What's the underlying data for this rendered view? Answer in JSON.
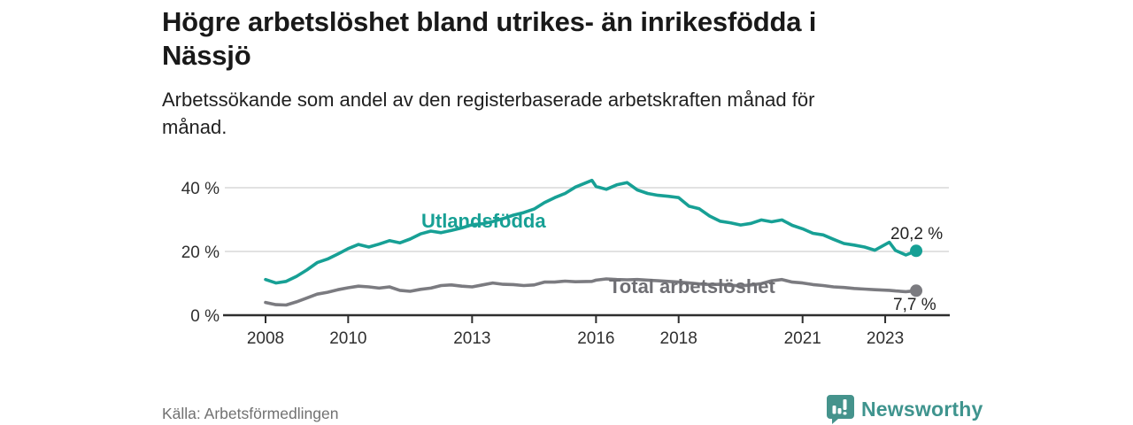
{
  "header": {
    "title_lines": [
      "Högre arbetslöshet bland utrikes- än inrikesfödda i",
      "Nässjö"
    ],
    "subtitle_lines": [
      "Arbetssökande som andel av den registerbaserade arbetskraften månad för",
      "månad."
    ]
  },
  "footer": {
    "source": "Källa: Arbetsförmedlingen",
    "brand": "Newsworthy"
  },
  "colors": {
    "teal": "#17a095",
    "gray": "#7b7b80",
    "teal_label": "#17a095",
    "gray_label": "#6f6f74",
    "axis": "#2e2e2e",
    "grid": "#d9d9d9",
    "brand": "#45938c"
  },
  "chart_data": {
    "type": "line",
    "title": "Högre arbetslöshet bland utrikes- än inrikesfödda i Nässjö",
    "subtitle": "Arbetssökande som andel av den registerbaserade arbetskraften månad för månad.",
    "xlabel": "",
    "ylabel": "",
    "grid": "horizontal",
    "legend_position": "inline-labels",
    "xlim": [
      2007.6,
      2024.4
    ],
    "ylim": [
      0,
      45
    ],
    "y_ticks": [
      {
        "value": 0,
        "label": "0 %"
      },
      {
        "value": 20,
        "label": "20 %"
      },
      {
        "value": 40,
        "label": "40 %"
      }
    ],
    "x_ticks": [
      {
        "value": 2008,
        "label": "2008"
      },
      {
        "value": 2010,
        "label": "2010"
      },
      {
        "value": 2013,
        "label": "2013"
      },
      {
        "value": 2016,
        "label": "2016"
      },
      {
        "value": 2018,
        "label": "2018"
      },
      {
        "value": 2021,
        "label": "2021"
      },
      {
        "value": 2023,
        "label": "2023"
      }
    ],
    "x": [
      2008.0,
      2008.25,
      2008.5,
      2008.75,
      2009.0,
      2009.25,
      2009.5,
      2009.75,
      2010.0,
      2010.25,
      2010.5,
      2010.75,
      2011.0,
      2011.25,
      2011.5,
      2011.75,
      2012.0,
      2012.25,
      2012.5,
      2012.75,
      2013.0,
      2013.25,
      2013.5,
      2013.75,
      2014.0,
      2014.25,
      2014.5,
      2014.75,
      2015.0,
      2015.25,
      2015.5,
      2015.9,
      2016.0,
      2016.25,
      2016.5,
      2016.75,
      2017.0,
      2017.25,
      2017.5,
      2017.75,
      2018.0,
      2018.25,
      2018.5,
      2018.75,
      2019.0,
      2019.25,
      2019.5,
      2019.75,
      2020.0,
      2020.25,
      2020.5,
      2020.75,
      2021.0,
      2021.25,
      2021.5,
      2021.75,
      2022.0,
      2022.25,
      2022.5,
      2022.75,
      2023.1,
      2023.25,
      2023.5,
      2023.75
    ],
    "series": [
      {
        "name": "Utlandsfödda",
        "color_key": "teal",
        "end_label": "20,2 %",
        "end_value": 20.2,
        "values": [
          11.2,
          10.1,
          10.6,
          12.2,
          14.2,
          16.5,
          17.6,
          19.2,
          20.9,
          22.2,
          21.4,
          22.3,
          23.4,
          22.7,
          23.9,
          25.5,
          26.4,
          25.9,
          26.6,
          27.4,
          28.4,
          28.7,
          29.4,
          30.3,
          31.4,
          32.2,
          33.3,
          35.3,
          36.9,
          38.2,
          40.2,
          42.3,
          40.4,
          39.5,
          40.9,
          41.6,
          39.3,
          38.2,
          37.6,
          37.3,
          36.9,
          34.2,
          33.4,
          31.1,
          29.5,
          29.0,
          28.3,
          28.8,
          29.9,
          29.3,
          29.9,
          28.2,
          27.1,
          25.7,
          25.2,
          23.8,
          22.5,
          22.0,
          21.4,
          20.4,
          22.9,
          20.3,
          18.9,
          20.2
        ]
      },
      {
        "name": "Total arbetslöshet",
        "color_key": "gray",
        "end_label": "7,7 %",
        "end_value": 7.7,
        "values": [
          4.0,
          3.3,
          3.2,
          4.2,
          5.4,
          6.6,
          7.2,
          8.0,
          8.6,
          9.1,
          8.9,
          8.5,
          8.9,
          7.8,
          7.5,
          8.1,
          8.5,
          9.3,
          9.5,
          9.1,
          8.9,
          9.5,
          10.1,
          9.7,
          9.6,
          9.3,
          9.5,
          10.4,
          10.4,
          10.7,
          10.5,
          10.6,
          11.0,
          11.4,
          11.2,
          11.1,
          11.2,
          11.0,
          10.8,
          10.6,
          10.4,
          10.1,
          9.8,
          9.6,
          9.7,
          9.4,
          9.2,
          9.5,
          9.9,
          10.8,
          11.2,
          10.4,
          10.1,
          9.6,
          9.3,
          8.9,
          8.7,
          8.4,
          8.2,
          8.0,
          7.8,
          7.6,
          7.4,
          7.7
        ]
      }
    ]
  }
}
